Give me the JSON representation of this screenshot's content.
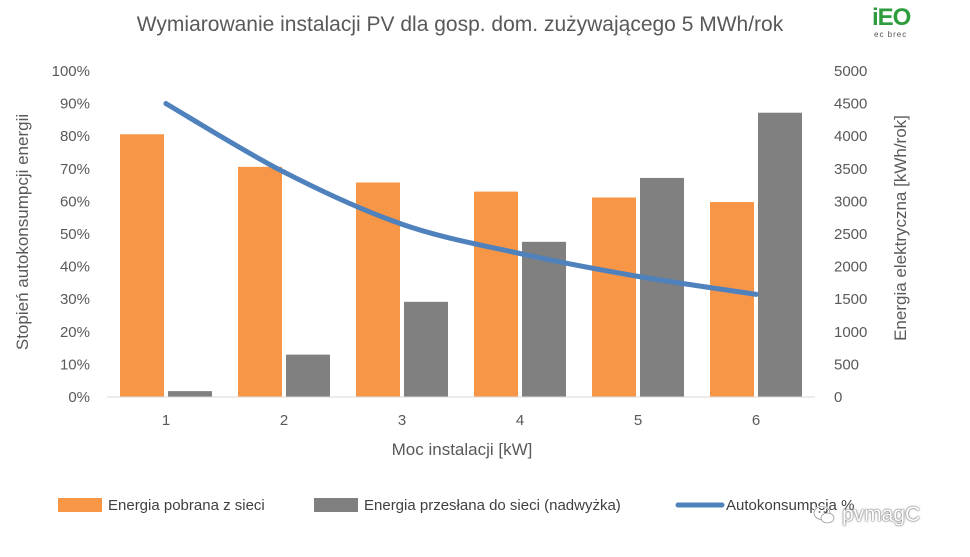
{
  "logo": {
    "main": "iEO",
    "sub": "ec brec"
  },
  "watermark": {
    "text": "pvmagC"
  },
  "chart_data": {
    "type": "bar",
    "title": "Wymiarowanie instalacji PV dla gosp. dom. zużywającego 5 MWh/rok",
    "xlabel": "Moc instalacji [kW]",
    "ylabel_left": "Stopień autokonsumpcji energii",
    "ylabel_right": "Energia elektryczna [kWh/rok]",
    "categories": [
      "1",
      "2",
      "3",
      "4",
      "5",
      "6"
    ],
    "ylim_left": [
      0,
      100
    ],
    "ylim_right": [
      0,
      5000
    ],
    "yticks_left": [
      "0%",
      "10%",
      "20%",
      "30%",
      "40%",
      "50%",
      "60%",
      "70%",
      "80%",
      "90%",
      "100%"
    ],
    "yticks_right": [
      "0",
      "500",
      "1000",
      "1500",
      "2000",
      "2500",
      "3000",
      "3500",
      "4000",
      "4500",
      "5000"
    ],
    "series": [
      {
        "name": "Energia pobrana z sieci",
        "type": "bar",
        "axis": "right",
        "color": "#f79646",
        "values": [
          4030,
          3530,
          3290,
          3150,
          3060,
          2990
        ]
      },
      {
        "name": "Energia przesłana do sieci (nadwyżka)",
        "type": "bar",
        "axis": "right",
        "color": "#808080",
        "values": [
          90,
          650,
          1460,
          2380,
          3360,
          4360
        ]
      },
      {
        "name": "Autokonsumpcja %",
        "type": "line",
        "axis": "left",
        "color": "#4f81bd",
        "values": [
          90,
          69,
          53,
          44,
          37,
          31.5
        ]
      }
    ],
    "legend_position": "bottom",
    "grid": false
  }
}
